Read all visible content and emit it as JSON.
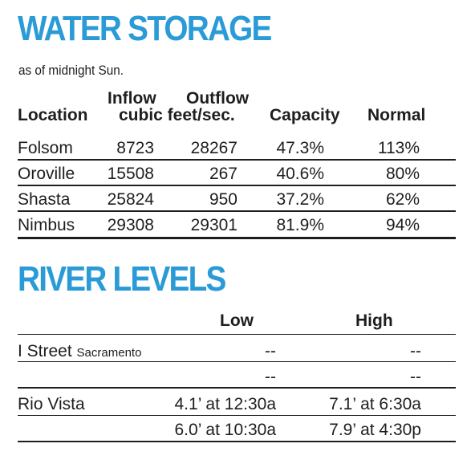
{
  "water_storage": {
    "title": "WATER STORAGE",
    "subtitle": "as of midnight Sun.",
    "headers": {
      "location": "Location",
      "inflow_top": "Inflow",
      "outflow_top": "Outflow",
      "units": "cubic feet/sec.",
      "capacity": "Capacity",
      "normal": "Normal"
    },
    "rows": [
      {
        "location": "Folsom",
        "inflow": "8723",
        "outflow": "28267",
        "capacity": "47.3%",
        "normal": "113%"
      },
      {
        "location": "Oroville",
        "inflow": "15508",
        "outflow": "267",
        "capacity": "40.6%",
        "normal": "80%"
      },
      {
        "location": "Shasta",
        "inflow": "25824",
        "outflow": "950",
        "capacity": "37.2%",
        "normal": "62%"
      },
      {
        "location": "Nimbus",
        "inflow": "29308",
        "outflow": "29301",
        "capacity": "81.9%",
        "normal": "94%"
      }
    ]
  },
  "river_levels": {
    "title": "RIVER LEVELS",
    "headers": {
      "low": "Low",
      "high": "High"
    },
    "rows": [
      {
        "location": "I Street",
        "sublocation": "Sacramento",
        "low": "--",
        "high": "--"
      },
      {
        "location": "",
        "sublocation": "",
        "low": "--",
        "high": "--"
      },
      {
        "location": "Rio Vista",
        "sublocation": "",
        "low": "4.1’ at 12:30a",
        "high": "7.1’ at 6:30a"
      },
      {
        "location": "",
        "sublocation": "",
        "low": "6.0’ at 10:30a",
        "high": "7.9’ at 4:30p"
      }
    ]
  },
  "colors": {
    "heading": "#2a9bd7",
    "text": "#1e1e1e"
  }
}
